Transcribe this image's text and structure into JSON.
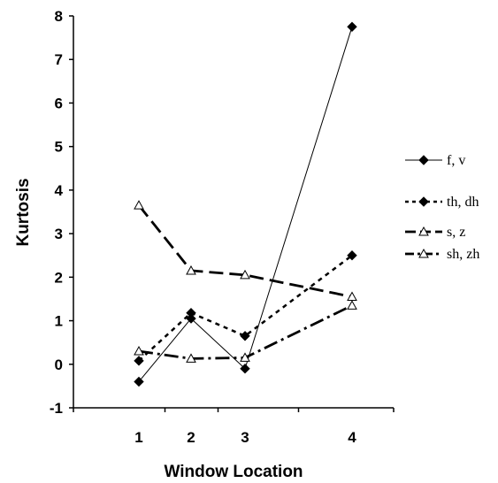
{
  "chart_data": {
    "type": "line",
    "title": "",
    "xlabel": "Window Location",
    "ylabel": "Kurtosis",
    "categories": [
      "1",
      "2",
      "3",
      "4"
    ],
    "ylim": [
      -1,
      8
    ],
    "yticks": [
      "-1",
      "0",
      "1",
      "2",
      "3",
      "4",
      "5",
      "6",
      "7",
      "8"
    ],
    "grid": false,
    "legend_position": "right",
    "series": [
      {
        "name": "f, v",
        "values": [
          -0.4,
          1.05,
          -0.1,
          7.75
        ],
        "marker": "diamond",
        "line_style": "solid"
      },
      {
        "name": "th, dh",
        "values": [
          0.08,
          1.18,
          0.65,
          2.5
        ],
        "marker": "diamond",
        "line_style": "dashed"
      },
      {
        "name": "s, z",
        "values": [
          3.65,
          2.15,
          2.05,
          1.55
        ],
        "marker": "triangle",
        "line_style": "long-dash"
      },
      {
        "name": "sh, zh",
        "values": [
          0.3,
          0.13,
          0.15,
          1.35
        ],
        "marker": "triangle",
        "line_style": "dash-dot"
      }
    ]
  }
}
